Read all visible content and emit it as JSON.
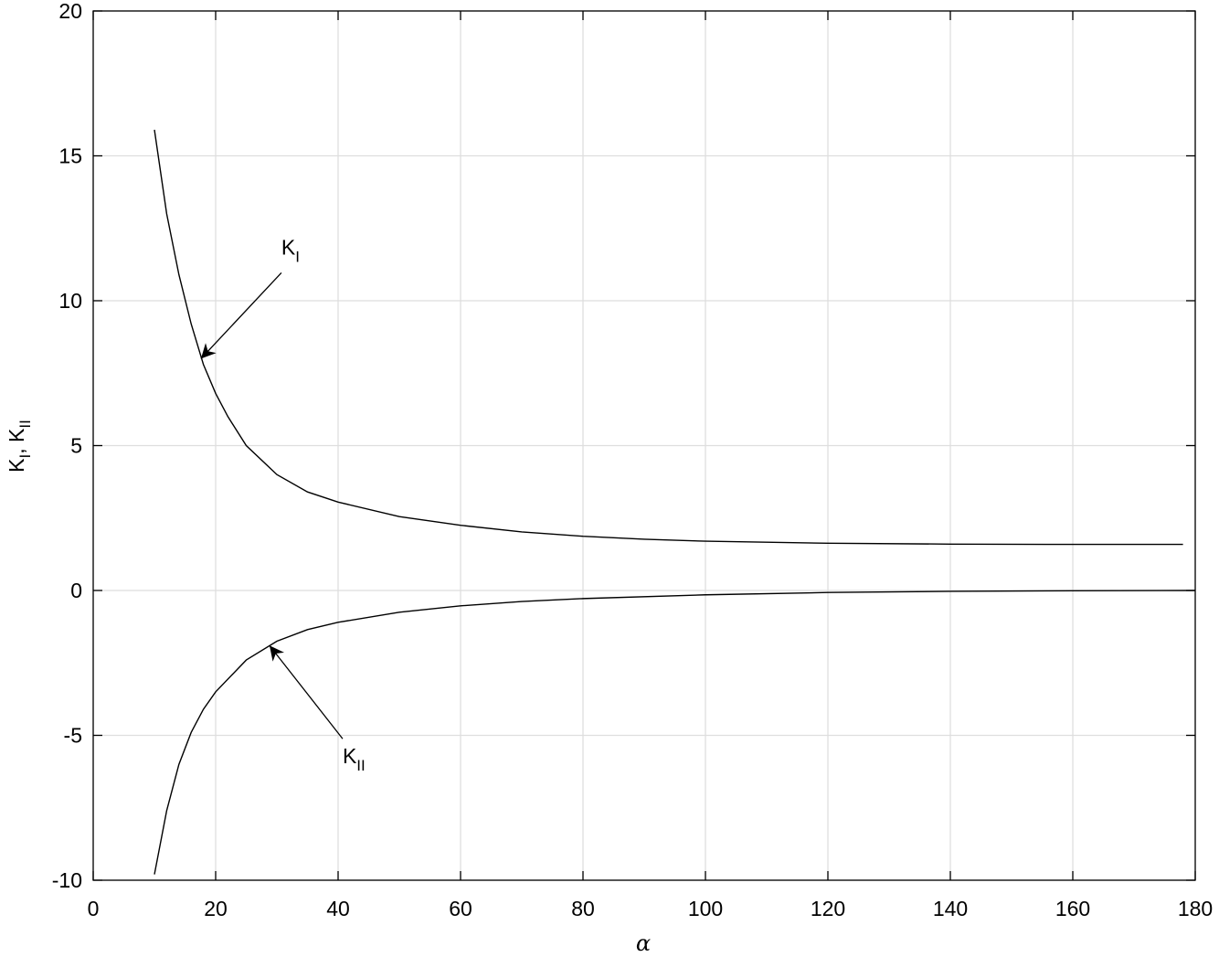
{
  "chart_data": {
    "type": "line",
    "xlabel": "α",
    "ylabel": [
      {
        "text": "K"
      },
      {
        "sub": "I"
      },
      {
        "text": ", K"
      },
      {
        "sub": "II"
      }
    ],
    "xlim": [
      0,
      180
    ],
    "ylim": [
      -10,
      20
    ],
    "xticks": [
      0,
      20,
      40,
      60,
      80,
      100,
      120,
      140,
      160,
      180
    ],
    "yticks": [
      -10,
      -5,
      0,
      5,
      10,
      15,
      20
    ],
    "grid": true,
    "series": [
      {
        "name": "KI",
        "color": "#000000",
        "x": [
          10,
          12,
          14,
          16,
          18,
          20,
          22,
          25,
          30,
          35,
          40,
          50,
          60,
          70,
          80,
          90,
          100,
          120,
          140,
          160,
          178
        ],
        "values": [
          15.9,
          13.0,
          10.9,
          9.2,
          7.8,
          6.8,
          6.0,
          5.0,
          4.0,
          3.4,
          3.05,
          2.55,
          2.25,
          2.02,
          1.87,
          1.77,
          1.7,
          1.63,
          1.6,
          1.59,
          1.59
        ]
      },
      {
        "name": "KII",
        "color": "#000000",
        "x": [
          10,
          12,
          14,
          16,
          18,
          20,
          25,
          30,
          35,
          40,
          50,
          60,
          70,
          80,
          100,
          120,
          140,
          160,
          180
        ],
        "values": [
          -9.8,
          -7.6,
          -6.0,
          -4.9,
          -4.1,
          -3.5,
          -2.4,
          -1.75,
          -1.35,
          -1.1,
          -0.75,
          -0.53,
          -0.38,
          -0.28,
          -0.15,
          -0.07,
          -0.03,
          -0.01,
          0
        ]
      }
    ],
    "annotations": [
      {
        "text": "K",
        "sub": "I",
        "x": 17.6,
        "y": 8.0
      },
      {
        "text": "K",
        "sub": "II",
        "x": 28.8,
        "y": -1.9
      }
    ]
  }
}
